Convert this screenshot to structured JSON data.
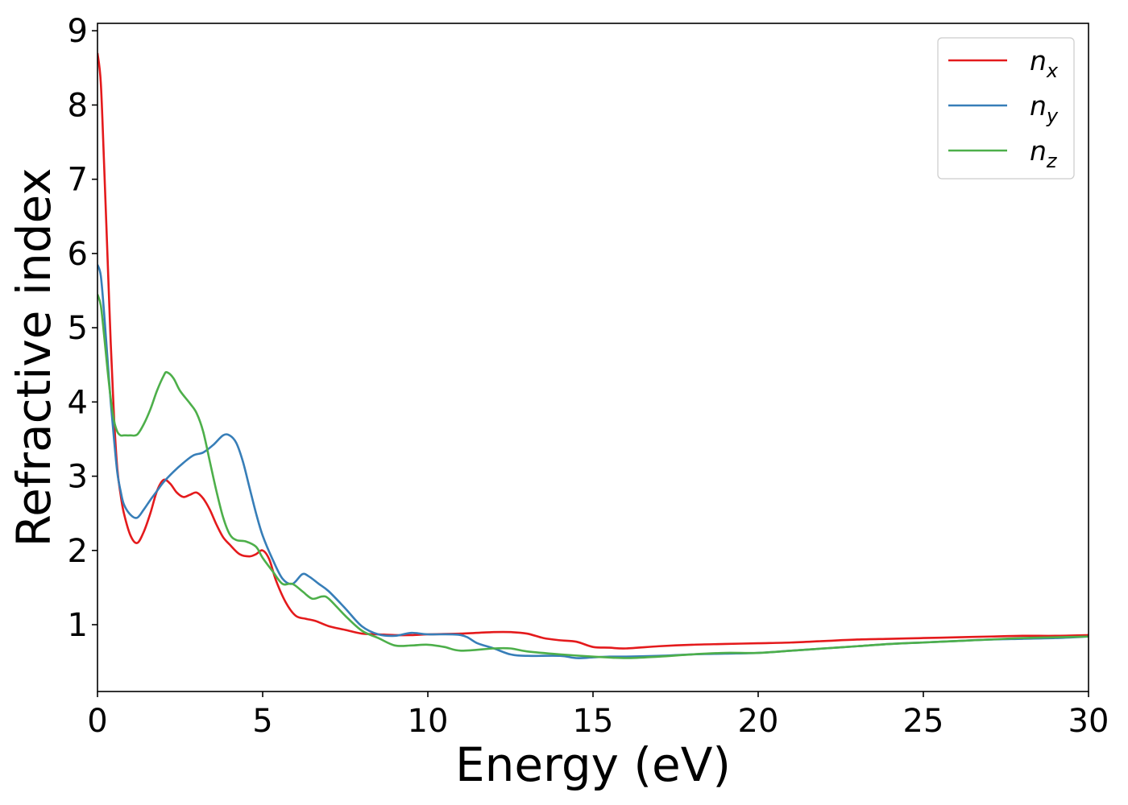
{
  "chart_data": {
    "type": "line",
    "title": "",
    "xlabel": "Energy (eV)",
    "ylabel": "Refractive index",
    "xlim": [
      0,
      30
    ],
    "ylim": [
      0.1,
      9.1
    ],
    "xticks": [
      0,
      5,
      10,
      15,
      20,
      25,
      30
    ],
    "yticks": [
      1,
      2,
      3,
      4,
      5,
      6,
      7,
      8,
      9
    ],
    "grid": false,
    "legend_position": "top-right",
    "series": [
      {
        "name": "n",
        "subscript": "x",
        "color": "#e41a1c",
        "x": [
          0,
          0.1,
          0.2,
          0.3,
          0.4,
          0.5,
          0.6,
          0.7,
          0.8,
          1.0,
          1.2,
          1.4,
          1.6,
          1.8,
          2.0,
          2.2,
          2.4,
          2.6,
          2.8,
          3.0,
          3.2,
          3.4,
          3.6,
          3.8,
          4.0,
          4.3,
          4.6,
          4.8,
          5.0,
          5.2,
          5.4,
          5.7,
          6.0,
          6.3,
          6.6,
          7.0,
          7.5,
          8.0,
          8.5,
          9.0,
          9.5,
          10,
          11,
          12,
          12.5,
          13,
          13.5,
          14,
          14.5,
          15,
          15.5,
          16,
          17,
          18,
          19,
          20,
          21,
          22,
          23,
          24,
          25,
          26,
          27,
          28,
          29,
          30
        ],
        "values": [
          8.7,
          8.3,
          7.2,
          6.0,
          4.8,
          3.8,
          3.1,
          2.75,
          2.5,
          2.2,
          2.1,
          2.25,
          2.5,
          2.8,
          2.95,
          2.9,
          2.78,
          2.72,
          2.75,
          2.78,
          2.7,
          2.55,
          2.35,
          2.18,
          2.08,
          1.95,
          1.92,
          1.95,
          2.0,
          1.88,
          1.6,
          1.3,
          1.12,
          1.08,
          1.05,
          0.98,
          0.93,
          0.88,
          0.87,
          0.86,
          0.86,
          0.87,
          0.88,
          0.9,
          0.9,
          0.88,
          0.82,
          0.79,
          0.77,
          0.7,
          0.69,
          0.68,
          0.71,
          0.73,
          0.74,
          0.75,
          0.76,
          0.78,
          0.8,
          0.81,
          0.82,
          0.83,
          0.84,
          0.85,
          0.85,
          0.86
        ]
      },
      {
        "name": "n",
        "subscript": "y",
        "color": "#377eb8",
        "x": [
          0,
          0.1,
          0.2,
          0.3,
          0.4,
          0.5,
          0.6,
          0.7,
          0.8,
          1.0,
          1.2,
          1.4,
          1.6,
          1.8,
          2.0,
          2.3,
          2.6,
          2.9,
          3.2,
          3.5,
          3.8,
          4.0,
          4.2,
          4.4,
          4.6,
          4.8,
          5.0,
          5.3,
          5.6,
          5.9,
          6.2,
          6.4,
          6.7,
          7.0,
          7.5,
          8.0,
          8.5,
          9.0,
          9.5,
          10,
          11,
          11.5,
          12,
          12.5,
          13,
          14,
          14.5,
          15,
          15.5,
          16,
          17,
          18,
          19,
          20,
          21,
          22,
          23,
          24,
          25,
          26,
          27,
          28,
          29,
          30
        ],
        "values": [
          5.85,
          5.7,
          5.2,
          4.6,
          4.0,
          3.5,
          3.05,
          2.8,
          2.62,
          2.48,
          2.44,
          2.55,
          2.68,
          2.8,
          2.92,
          3.06,
          3.18,
          3.28,
          3.32,
          3.42,
          3.55,
          3.55,
          3.45,
          3.2,
          2.85,
          2.5,
          2.2,
          1.88,
          1.62,
          1.55,
          1.68,
          1.65,
          1.55,
          1.45,
          1.22,
          0.98,
          0.87,
          0.85,
          0.89,
          0.87,
          0.86,
          0.75,
          0.68,
          0.6,
          0.58,
          0.58,
          0.55,
          0.56,
          0.57,
          0.57,
          0.58,
          0.6,
          0.61,
          0.62,
          0.65,
          0.68,
          0.71,
          0.74,
          0.76,
          0.78,
          0.8,
          0.81,
          0.82,
          0.84
        ]
      },
      {
        "name": "n",
        "subscript": "z",
        "color": "#4daf4a",
        "x": [
          0,
          0.1,
          0.2,
          0.3,
          0.4,
          0.5,
          0.6,
          0.7,
          0.8,
          1.0,
          1.2,
          1.4,
          1.6,
          1.8,
          2.0,
          2.1,
          2.3,
          2.5,
          2.8,
          3.0,
          3.2,
          3.4,
          3.6,
          3.8,
          4.0,
          4.2,
          4.5,
          4.8,
          5.0,
          5.3,
          5.6,
          5.9,
          6.2,
          6.5,
          6.8,
          7.0,
          7.5,
          8.0,
          8.5,
          9.0,
          9.5,
          10,
          10.5,
          11,
          12,
          12.5,
          13,
          14,
          15,
          16,
          17,
          18,
          19,
          20,
          21,
          22,
          23,
          24,
          25,
          26,
          27,
          28,
          29,
          30
        ],
        "values": [
          5.45,
          5.3,
          4.9,
          4.45,
          4.05,
          3.75,
          3.6,
          3.55,
          3.55,
          3.55,
          3.56,
          3.7,
          3.9,
          4.15,
          4.35,
          4.4,
          4.32,
          4.15,
          3.98,
          3.85,
          3.6,
          3.2,
          2.8,
          2.45,
          2.22,
          2.14,
          2.12,
          2.05,
          1.9,
          1.72,
          1.55,
          1.55,
          1.45,
          1.35,
          1.38,
          1.35,
          1.12,
          0.92,
          0.82,
          0.72,
          0.72,
          0.73,
          0.7,
          0.65,
          0.68,
          0.68,
          0.64,
          0.6,
          0.57,
          0.55,
          0.57,
          0.6,
          0.62,
          0.62,
          0.65,
          0.68,
          0.71,
          0.74,
          0.76,
          0.78,
          0.8,
          0.82,
          0.83,
          0.84
        ]
      }
    ]
  }
}
